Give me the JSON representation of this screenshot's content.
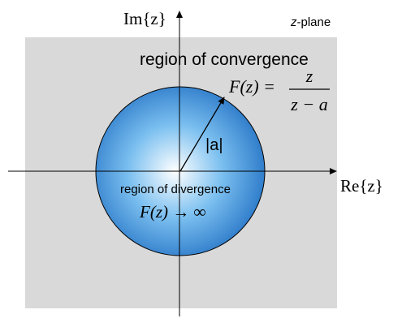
{
  "plane_label_var": "z",
  "plane_label_suffix": "-plane",
  "imag_axis_label": "Im{z}",
  "real_axis_label": "Re{z}",
  "convergence_label": "region of convergence",
  "divergence_label": "region of divergence",
  "function_lhs": "F(z) =",
  "function_numerator": "z",
  "function_denominator": "z − a",
  "divergence_formula": "F(z) → ∞",
  "radius_label": "|a|",
  "colors": {
    "region_fill": "#d9d9d9",
    "disk_center": "#ffffff",
    "disk_mid": "#7cc0f0",
    "disk_edge": "#2a78c8",
    "disk_outline": "#000000",
    "axis": "#000000",
    "text": "#000000"
  }
}
